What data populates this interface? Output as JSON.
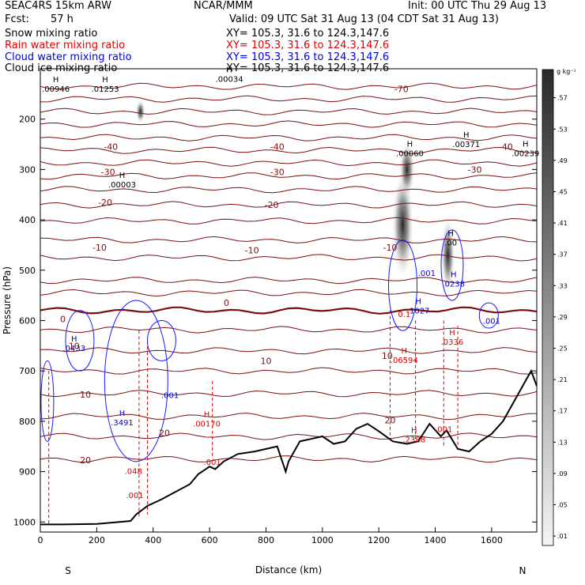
{
  "header": {
    "model": "SEAC4RS 15km ARW",
    "center": "NCAR/MMM",
    "init": "Init: 00 UTC Thu 29 Aug 13",
    "fcst_label": "Fcst:",
    "fcst_value": "57 h",
    "valid": "Valid: 09 UTC Sat 31 Aug 13 (04 CDT Sat 31 Aug 13)",
    "lines": [
      {
        "label": "Snow mixing ratio",
        "xy": "XY= 105.3, 31.6 to 124.3,147.6",
        "color": "#000000"
      },
      {
        "label": "Rain water mixing ratio",
        "xy": "XY= 105.3, 31.6 to 124.3,147.6",
        "color": "#e00000"
      },
      {
        "label": "Cloud water mixing ratio",
        "xy": "XY= 105.3, 31.6 to 124.3,147.6",
        "color": "#0000dd"
      },
      {
        "label": "Cloud ice mixing ratio",
        "xy": "XY= 105.3, 31.6 to 124.3,147.6",
        "color": "#000000"
      }
    ]
  },
  "chart_data": {
    "type": "cross-section",
    "xlabel": "Distance (km)",
    "ylabel": "Pressure (hPa)",
    "x_ticks": [
      0,
      200,
      400,
      600,
      800,
      1000,
      1200,
      1400,
      1600
    ],
    "y_ticks": [
      200,
      300,
      400,
      500,
      600,
      700,
      800,
      900,
      1000
    ],
    "xlim": [
      0,
      1760
    ],
    "ylim": [
      1020,
      100
    ],
    "endpoints": {
      "left": "S",
      "right": "N"
    },
    "colorbar": {
      "unit": "g kg⁻¹",
      "labels": [
        ".57",
        ".53",
        ".49",
        ".45",
        ".41",
        ".37",
        ".33",
        ".29",
        ".25",
        ".21",
        ".17",
        ".13",
        ".09",
        ".05",
        ".01"
      ],
      "levels": [
        0.57,
        0.53,
        0.49,
        0.45,
        0.41,
        0.37,
        0.33,
        0.29,
        0.25,
        0.21,
        0.17,
        0.13,
        0.09,
        0.05,
        0.01
      ]
    },
    "temperature_labels": [
      {
        "x": 1280,
        "p": 140,
        "text": "-70"
      },
      {
        "x": 250,
        "p": 255,
        "text": "-40"
      },
      {
        "x": 840,
        "p": 255,
        "text": "-40"
      },
      {
        "x": 1650,
        "p": 255,
        "text": "-40"
      },
      {
        "x": 240,
        "p": 305,
        "text": "-30"
      },
      {
        "x": 840,
        "p": 305,
        "text": "-30"
      },
      {
        "x": 1540,
        "p": 300,
        "text": "-30"
      },
      {
        "x": 230,
        "p": 365,
        "text": "-20"
      },
      {
        "x": 820,
        "p": 370,
        "text": "-20"
      },
      {
        "x": 210,
        "p": 455,
        "text": "-10"
      },
      {
        "x": 750,
        "p": 460,
        "text": "-10"
      },
      {
        "x": 1240,
        "p": 455,
        "text": "-10"
      },
      {
        "x": 660,
        "p": 565,
        "text": "0"
      },
      {
        "x": 80,
        "p": 597,
        "text": "0"
      },
      {
        "x": 120,
        "p": 650,
        "text": "10"
      },
      {
        "x": 800,
        "p": 680,
        "text": "10"
      },
      {
        "x": 1230,
        "p": 670,
        "text": "10"
      },
      {
        "x": 160,
        "p": 747,
        "text": "10"
      },
      {
        "x": 440,
        "p": 823,
        "text": "20"
      },
      {
        "x": 160,
        "p": 877,
        "text": "20"
      },
      {
        "x": 1240,
        "p": 798,
        "text": "20"
      }
    ],
    "maxima": [
      {
        "x": 55,
        "p": 130,
        "value": ".00946",
        "color": "#000000"
      },
      {
        "x": 230,
        "p": 130,
        "value": ".01253",
        "color": "#000000"
      },
      {
        "x": 670,
        "p": 110,
        "value": ".00034",
        "color": "#000000"
      },
      {
        "x": 1310,
        "p": 258,
        "value": ".00060",
        "color": "#000000"
      },
      {
        "x": 1510,
        "p": 240,
        "value": ".00371",
        "color": "#000000"
      },
      {
        "x": 1720,
        "p": 258,
        "value": ".00239",
        "color": "#000000"
      },
      {
        "x": 290,
        "p": 320,
        "value": ".00003",
        "color": "#000000"
      },
      {
        "x": 1455,
        "p": 435,
        "value": ".00",
        "color": "#000000"
      },
      {
        "x": 120,
        "p": 645,
        "value": ".0433",
        "color": "#0000dd"
      },
      {
        "x": 290,
        "p": 792,
        "value": ".3491",
        "color": "#0000dd"
      },
      {
        "x": 1340,
        "p": 570,
        "value": ".1027",
        "color": "#0000dd"
      },
      {
        "x": 1465,
        "p": 517,
        "value": ".0238",
        "color": "#0000dd"
      },
      {
        "x": 590,
        "p": 795,
        "value": ".00170",
        "color": "#e00000"
      },
      {
        "x": 1290,
        "p": 668,
        "value": ".06594",
        "color": "#e00000"
      },
      {
        "x": 1460,
        "p": 632,
        "value": ".0336",
        "color": "#e00000"
      },
      {
        "x": 1325,
        "p": 826,
        "value": ".2388",
        "color": "#e00000"
      }
    ],
    "small_labels": [
      {
        "x": 1370,
        "p": 505,
        "text": ".001",
        "color": "#0000dd"
      },
      {
        "x": 1600,
        "p": 600,
        "text": ".001",
        "color": "#0000dd"
      },
      {
        "x": 460,
        "p": 748,
        "text": ".001",
        "color": "#0000dd"
      },
      {
        "x": 1290,
        "p": 587,
        "text": "0.1",
        "color": "#e00000"
      },
      {
        "x": 1430,
        "p": 815,
        "text": ".001",
        "color": "#e00000"
      },
      {
        "x": 330,
        "p": 898,
        "text": ".048",
        "color": "#e00000"
      },
      {
        "x": 335,
        "p": 946,
        "text": ".001",
        "color": "#e00000"
      },
      {
        "x": 610,
        "p": 880,
        "text": ".001",
        "color": "#e00000"
      }
    ]
  }
}
